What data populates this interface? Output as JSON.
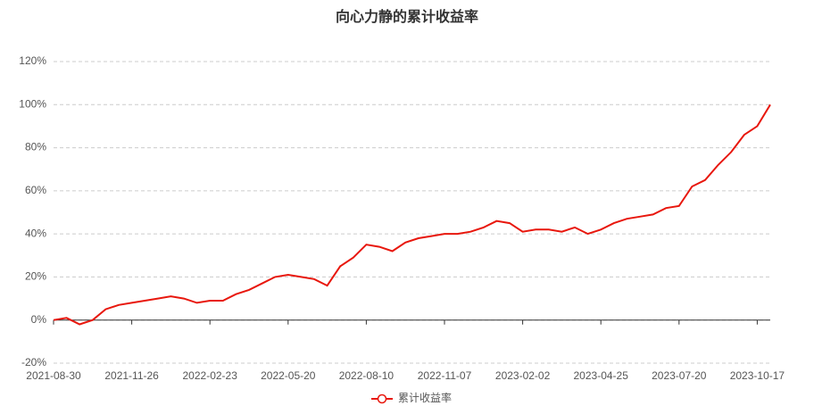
{
  "chart_data": {
    "type": "line",
    "title": "向心力静的累计收益率",
    "categories": [
      "2021-08-30",
      null,
      null,
      null,
      null,
      null,
      "2021-11-26",
      null,
      null,
      null,
      null,
      null,
      "2022-02-23",
      null,
      null,
      null,
      null,
      null,
      "2022-05-20",
      null,
      null,
      null,
      null,
      null,
      "2022-08-10",
      null,
      null,
      null,
      null,
      null,
      "2022-11-07",
      null,
      null,
      null,
      null,
      null,
      "2023-02-02",
      null,
      null,
      null,
      null,
      null,
      "2023-04-25",
      null,
      null,
      null,
      null,
      null,
      "2023-07-20",
      null,
      null,
      null,
      null,
      null,
      "2023-10-17",
      null
    ],
    "series": [
      {
        "name": "累计收益率",
        "color": "#e8170d",
        "values": [
          0,
          1,
          -2,
          0,
          5,
          7,
          8,
          9,
          10,
          11,
          10,
          8,
          9,
          9,
          12,
          14,
          17,
          20,
          21,
          20,
          19,
          16,
          25,
          29,
          35,
          34,
          32,
          36,
          38,
          39,
          40,
          40,
          41,
          43,
          46,
          45,
          41,
          42,
          42,
          41,
          43,
          40,
          42,
          45,
          47,
          48,
          49,
          52,
          53,
          62,
          65,
          72,
          78,
          86,
          90,
          100
        ]
      }
    ],
    "ylim": [
      -20,
      120
    ],
    "yticks": [
      {
        "value": -20,
        "label": "-20%"
      },
      {
        "value": 0,
        "label": "0%"
      },
      {
        "value": 20,
        "label": "20%"
      },
      {
        "value": 40,
        "label": "40%"
      },
      {
        "value": 60,
        "label": "60%"
      },
      {
        "value": 80,
        "label": "80%"
      },
      {
        "value": 100,
        "label": "100%"
      },
      {
        "value": 120,
        "label": "120%"
      }
    ],
    "grid": true
  }
}
